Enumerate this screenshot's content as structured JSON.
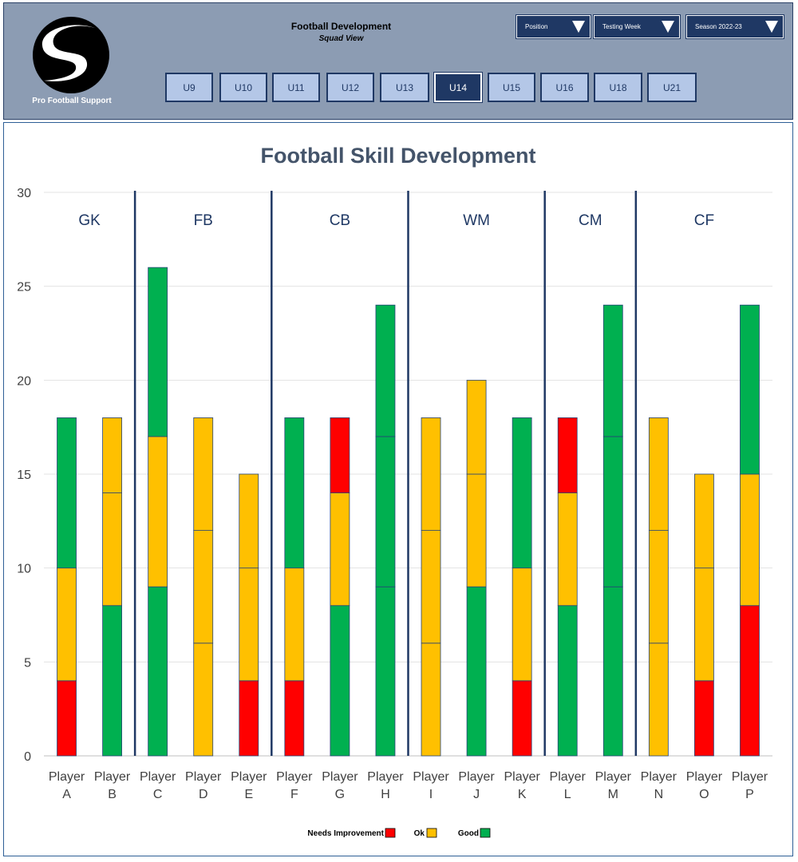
{
  "header": {
    "logo_text": "Pro Football Support",
    "title": "Football Development",
    "subtitle": "Squad View",
    "dropdowns": [
      {
        "label": "Position"
      },
      {
        "label": "Testing  Week"
      },
      {
        "label": "Season  2022-23"
      }
    ],
    "tabs": [
      "U9",
      "U10",
      "U11",
      "U12",
      "U13",
      "U14",
      "U15",
      "U16",
      "U18",
      "U21"
    ],
    "active_tab": "U14"
  },
  "colors": {
    "needs_improvement": "#ff0000",
    "ok": "#ffc000",
    "good": "#00b050",
    "header_bg": "#8c9cb3",
    "navy": "#1f3864"
  },
  "chart_data": {
    "type": "bar",
    "stacked": true,
    "title": "Football Skill Development",
    "ylim": [
      0,
      30
    ],
    "yticks": [
      0,
      5,
      10,
      15,
      20,
      25,
      30
    ],
    "grid": true,
    "legend_position": "bottom",
    "legend": [
      {
        "label": "Needs Improvement",
        "color": "#ff0000"
      },
      {
        "label": "Ok",
        "color": "#ffc000"
      },
      {
        "label": "Good",
        "color": "#00b050"
      }
    ],
    "groups": [
      {
        "name": "GK",
        "players": [
          "A",
          "B"
        ]
      },
      {
        "name": "FB",
        "players": [
          "C",
          "D",
          "E"
        ]
      },
      {
        "name": "CB",
        "players": [
          "F",
          "G",
          "H"
        ]
      },
      {
        "name": "WM",
        "players": [
          "I",
          "J",
          "K"
        ]
      },
      {
        "name": "CM",
        "players": [
          "L",
          "M"
        ]
      },
      {
        "name": "CF",
        "players": [
          "N",
          "O",
          "P"
        ]
      }
    ],
    "players": [
      {
        "line1": "Player",
        "line2": "A",
        "segments": [
          {
            "c": "needs_improvement",
            "v": 4
          },
          {
            "c": "ok",
            "v": 6
          },
          {
            "c": "good",
            "v": 8
          }
        ]
      },
      {
        "line1": "Player",
        "line2": "B",
        "segments": [
          {
            "c": "good",
            "v": 8
          },
          {
            "c": "ok",
            "v": 6
          },
          {
            "c": "ok",
            "v": 4
          }
        ]
      },
      {
        "line1": "Player",
        "line2": "C",
        "segments": [
          {
            "c": "good",
            "v": 9
          },
          {
            "c": "ok",
            "v": 8
          },
          {
            "c": "good",
            "v": 9
          }
        ]
      },
      {
        "line1": "Player",
        "line2": "D",
        "segments": [
          {
            "c": "ok",
            "v": 6
          },
          {
            "c": "ok",
            "v": 6
          },
          {
            "c": "ok",
            "v": 6
          }
        ]
      },
      {
        "line1": "Player",
        "line2": "E",
        "segments": [
          {
            "c": "needs_improvement",
            "v": 4
          },
          {
            "c": "ok",
            "v": 6
          },
          {
            "c": "ok",
            "v": 5
          }
        ]
      },
      {
        "line1": "Player",
        "line2": "F",
        "segments": [
          {
            "c": "needs_improvement",
            "v": 4
          },
          {
            "c": "ok",
            "v": 6
          },
          {
            "c": "good",
            "v": 8
          }
        ]
      },
      {
        "line1": "Player",
        "line2": "G",
        "segments": [
          {
            "c": "good",
            "v": 8
          },
          {
            "c": "ok",
            "v": 6
          },
          {
            "c": "needs_improvement",
            "v": 4
          }
        ]
      },
      {
        "line1": "Player",
        "line2": "H",
        "segments": [
          {
            "c": "good",
            "v": 9
          },
          {
            "c": "good",
            "v": 8
          },
          {
            "c": "good",
            "v": 7
          }
        ]
      },
      {
        "line1": "Player",
        "line2": "I",
        "segments": [
          {
            "c": "ok",
            "v": 6
          },
          {
            "c": "ok",
            "v": 6
          },
          {
            "c": "ok",
            "v": 6
          }
        ]
      },
      {
        "line1": "Player",
        "line2": "J",
        "segments": [
          {
            "c": "good",
            "v": 9
          },
          {
            "c": "ok",
            "v": 6
          },
          {
            "c": "ok",
            "v": 5
          }
        ]
      },
      {
        "line1": "Player",
        "line2": "K",
        "segments": [
          {
            "c": "needs_improvement",
            "v": 4
          },
          {
            "c": "ok",
            "v": 6
          },
          {
            "c": "good",
            "v": 8
          }
        ]
      },
      {
        "line1": "Player",
        "line2": "L",
        "segments": [
          {
            "c": "good",
            "v": 8
          },
          {
            "c": "ok",
            "v": 6
          },
          {
            "c": "needs_improvement",
            "v": 4
          }
        ]
      },
      {
        "line1": "Player",
        "line2": "M",
        "segments": [
          {
            "c": "good",
            "v": 9
          },
          {
            "c": "good",
            "v": 8
          },
          {
            "c": "good",
            "v": 7
          }
        ]
      },
      {
        "line1": "Player",
        "line2": "N",
        "segments": [
          {
            "c": "ok",
            "v": 6
          },
          {
            "c": "ok",
            "v": 6
          },
          {
            "c": "ok",
            "v": 6
          }
        ]
      },
      {
        "line1": "Player",
        "line2": "O",
        "segments": [
          {
            "c": "needs_improvement",
            "v": 4
          },
          {
            "c": "ok",
            "v": 6
          },
          {
            "c": "ok",
            "v": 5
          }
        ]
      },
      {
        "line1": "Player",
        "line2": "P",
        "segments": [
          {
            "c": "needs_improvement",
            "v": 8
          },
          {
            "c": "ok",
            "v": 7
          },
          {
            "c": "good",
            "v": 9
          }
        ]
      }
    ]
  }
}
